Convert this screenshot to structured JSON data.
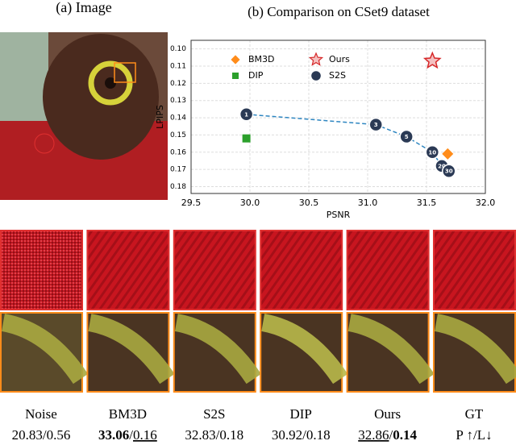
{
  "panel_a": {
    "title": "(a) Image"
  },
  "chart_data": {
    "type": "scatter",
    "title": "(b) Comparison on CSet9 dataset",
    "x_label": "PSNR",
    "y_label": "LPIPS",
    "xlim": [
      29.5,
      32.0
    ],
    "ylim": [
      0.095,
      0.184
    ],
    "y_inverted": true,
    "grid": true,
    "legend": "upper left",
    "xticks": [
      29.5,
      {
        "value": 30.0,
        "label": "30.0"
      },
      30.5,
      {
        "value": 31.0,
        "label": "31.0"
      },
      31.5,
      {
        "value": 32.0,
        "label": "32.0"
      }
    ],
    "yticks": [
      {
        "value": 0.1,
        "label": "0.10"
      },
      0.11,
      0.12,
      0.13,
      0.14,
      0.15,
      0.16,
      0.17,
      {
        "value": 0.18,
        "label": "0.18"
      }
    ],
    "series": [
      {
        "name": "BM3D",
        "color": "#ff8c1a",
        "marker": "diamond",
        "x": [
          31.68
        ],
        "y": [
          0.161
        ]
      },
      {
        "name": "DIP",
        "color": "#2ca02c",
        "marker": "square",
        "x": [
          29.97
        ],
        "y": [
          0.152
        ]
      },
      {
        "name": "Ours",
        "color": "#d62728",
        "marker": "star",
        "x": [
          31.55
        ],
        "y": [
          0.107
        ]
      },
      {
        "name": "S2S",
        "color": "#2b3a55",
        "marker": "circle",
        "line_color": "#2e86c1",
        "x": [
          29.97,
          31.07,
          31.33,
          31.55,
          31.63,
          31.69
        ],
        "y": [
          0.138,
          0.144,
          0.151,
          0.16,
          0.168,
          0.171
        ],
        "point_labels": [
          "1",
          "3",
          "5",
          "10",
          "20",
          "30"
        ]
      }
    ]
  },
  "patches": {
    "separator": "/",
    "columns": [
      {
        "name": "Noise",
        "psnr": "20.83",
        "lpips": "0.56"
      },
      {
        "name": "BM3D",
        "psnr": "33.06",
        "lpips": "0.16"
      },
      {
        "name": "S2S",
        "psnr": "32.83",
        "lpips": "0.18"
      },
      {
        "name": "DIP",
        "psnr": "30.92",
        "lpips": "0.18"
      },
      {
        "name": "Ours",
        "psnr": "32.86",
        "lpips": "0.14"
      },
      {
        "name": "GT",
        "psnr": "P ↑",
        "lpips": "L↓"
      }
    ]
  }
}
